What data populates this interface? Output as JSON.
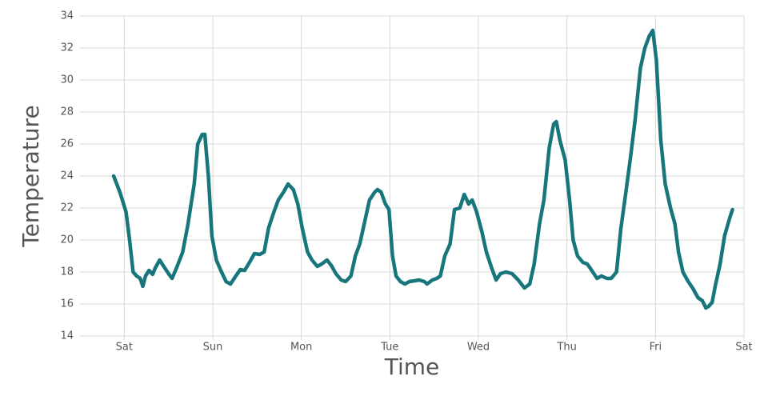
{
  "chart_data": {
    "type": "line",
    "x_label": "Time",
    "y_label": "Temperature",
    "x": [
      -0.12,
      -0.05,
      0.02,
      0.06,
      0.1,
      0.14,
      0.18,
      0.21,
      0.24,
      0.28,
      0.32,
      0.35,
      0.4,
      0.44,
      0.5,
      0.54,
      0.59,
      0.66,
      0.72,
      0.79,
      0.83,
      0.88,
      0.91,
      0.95,
      0.99,
      1.04,
      1.09,
      1.15,
      1.2,
      1.26,
      1.31,
      1.36,
      1.42,
      1.47,
      1.53,
      1.58,
      1.63,
      1.69,
      1.74,
      1.8,
      1.85,
      1.91,
      1.96,
      2.01,
      2.07,
      2.12,
      2.18,
      2.23,
      2.29,
      2.34,
      2.39,
      2.45,
      2.5,
      2.56,
      2.61,
      2.66,
      2.72,
      2.77,
      2.83,
      2.86,
      2.9,
      2.95,
      2.99,
      3.03,
      3.07,
      3.12,
      3.17,
      3.22,
      3.28,
      3.33,
      3.39,
      3.42,
      3.48,
      3.53,
      3.57,
      3.62,
      3.68,
      3.73,
      3.79,
      3.84,
      3.89,
      3.93,
      3.98,
      4.04,
      4.09,
      4.15,
      4.2,
      4.25,
      4.31,
      4.38,
      4.45,
      4.52,
      4.58,
      4.63,
      4.69,
      4.74,
      4.8,
      4.85,
      4.88,
      4.92,
      4.98,
      5.03,
      5.07,
      5.12,
      5.18,
      5.23,
      5.28,
      5.34,
      5.39,
      5.45,
      5.5,
      5.56,
      5.61,
      5.66,
      5.72,
      5.77,
      5.83,
      5.88,
      5.93,
      5.97,
      6.01,
      6.06,
      6.11,
      6.17,
      6.22,
      6.26,
      6.31,
      6.37,
      6.42,
      6.48,
      6.53,
      6.57,
      6.6,
      6.64,
      6.68,
      6.73,
      6.78,
      6.84,
      6.87
    ],
    "values": [
      24,
      23,
      21.75,
      20,
      18,
      17.75,
      17.6,
      17.1,
      17.75,
      18.1,
      17.85,
      18.25,
      18.75,
      18.4,
      17.9,
      17.6,
      18.25,
      19.25,
      21,
      23.5,
      26,
      26.6,
      26.6,
      24,
      20.25,
      18.75,
      18.1,
      17.4,
      17.25,
      17.75,
      18.15,
      18.1,
      18.65,
      19.15,
      19.1,
      19.25,
      20.75,
      21.75,
      22.5,
      23,
      23.5,
      23.15,
      22.25,
      20.75,
      19.25,
      18.75,
      18.35,
      18.5,
      18.75,
      18.4,
      17.9,
      17.5,
      17.4,
      17.75,
      19,
      19.75,
      21.25,
      22.5,
      23,
      23.15,
      23,
      22.25,
      21.9,
      19,
      17.75,
      17.4,
      17.25,
      17.4,
      17.45,
      17.5,
      17.4,
      17.25,
      17.5,
      17.6,
      17.75,
      19,
      19.75,
      21.9,
      22,
      22.85,
      22.25,
      22.5,
      21.75,
      20.5,
      19.25,
      18.25,
      17.5,
      17.9,
      18,
      17.9,
      17.5,
      17,
      17.25,
      18.5,
      21,
      22.5,
      25.75,
      27.25,
      27.4,
      26.25,
      25,
      22.5,
      20,
      19,
      18.6,
      18.5,
      18.1,
      17.6,
      17.75,
      17.6,
      17.6,
      18,
      20.75,
      22.75,
      25.25,
      27.5,
      30.75,
      32,
      32.75,
      33.1,
      31.25,
      26.25,
      23.5,
      22,
      21,
      19.25,
      18,
      17.4,
      17,
      16.4,
      16.2,
      15.75,
      15.85,
      16.1,
      17.25,
      18.5,
      20.25,
      21.4,
      21.9
    ],
    "color": "#17767b",
    "xlim": [
      -0.5,
      7
    ],
    "xticks": [
      {
        "value": 0,
        "label": "Sat"
      },
      {
        "value": 1,
        "label": "Sun"
      },
      {
        "value": 2,
        "label": "Mon"
      },
      {
        "value": 3,
        "label": "Tue"
      },
      {
        "value": 4,
        "label": "Wed"
      },
      {
        "value": 5,
        "label": "Thu"
      },
      {
        "value": 6,
        "label": "Fri"
      },
      {
        "value": 7,
        "label": "Sat"
      }
    ],
    "ylim": [
      14,
      34
    ],
    "yticks": [
      14,
      16,
      18,
      20,
      22,
      24,
      26,
      28,
      30,
      32,
      34
    ],
    "grid": true
  }
}
